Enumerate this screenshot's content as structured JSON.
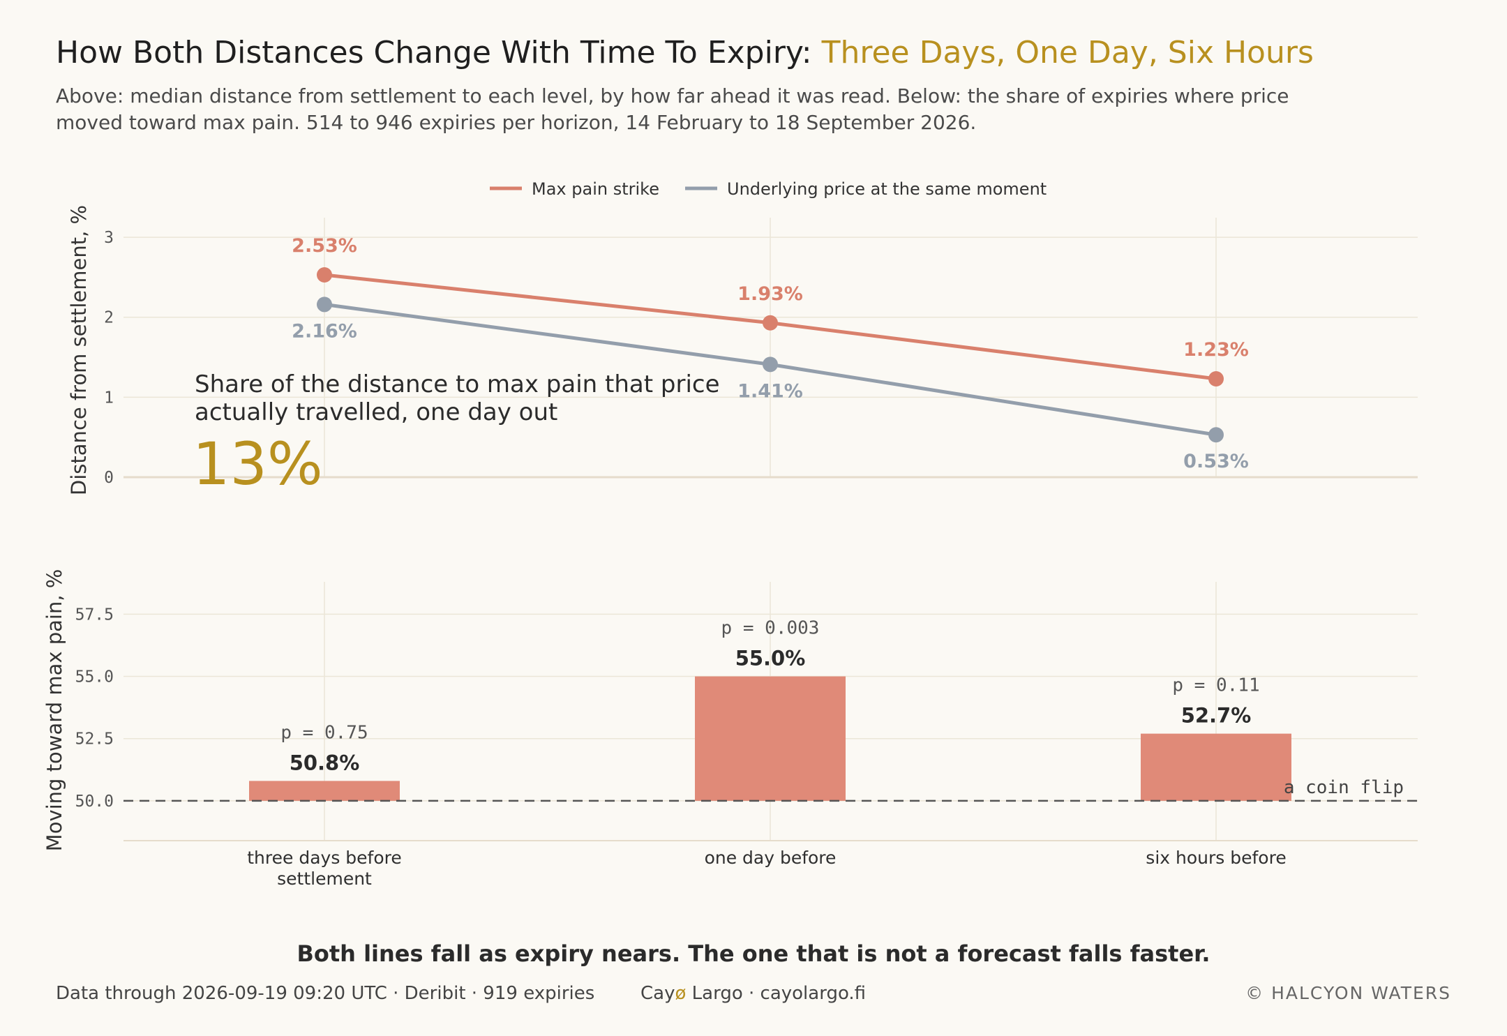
{
  "header": {
    "title_prefix": "How Both Distances Change With Time To Expiry: ",
    "title_accent": "Three Days, One Day, Six Hours",
    "subtitle_line1": "Above: median distance from settlement to each level, by how far ahead it was read. Below: the share of expiries where price",
    "subtitle_line2": "moved toward max pain. 514 to 946 expiries per horizon, 14 February to 18 September 2026."
  },
  "legend": {
    "items": [
      {
        "label": "Max pain strike",
        "color": "#d9806c"
      },
      {
        "label": "Underlying price at the same moment",
        "color": "#939eab"
      }
    ]
  },
  "annotation": {
    "line1": "Share of the distance to max pain that price",
    "line2": "actually travelled, one day out",
    "value": "13%"
  },
  "chart_data": [
    {
      "type": "line",
      "ylabel": "Distance from settlement, %",
      "ylim": [
        0,
        3.35
      ],
      "yticks": [
        0,
        1,
        2,
        3
      ],
      "grid": true,
      "legend_position": "top-center",
      "categories": [
        "three days before settlement",
        "one day before",
        "six hours before"
      ],
      "series": [
        {
          "name": "Max pain strike",
          "color": "#d9806c",
          "values": [
            2.53,
            1.93,
            1.23
          ],
          "labels": [
            "2.53%",
            "1.93%",
            "1.23%"
          ]
        },
        {
          "name": "Underlying price at the same moment",
          "color": "#939eab",
          "values": [
            2.16,
            1.41,
            0.53
          ],
          "labels": [
            "2.16%",
            "1.41%",
            "0.53%"
          ]
        }
      ]
    },
    {
      "type": "bar",
      "ylabel": "Moving toward max pain, %",
      "ylim": [
        48.4,
        58.8
      ],
      "yticks": [
        50.0,
        52.5,
        55.0,
        57.5
      ],
      "ytick_labels": [
        "50.0",
        "52.5",
        "55.0",
        "57.5"
      ],
      "baseline": 50.0,
      "baseline_label": "a coin flip",
      "color": "#e08a78",
      "categories": [
        "three days before settlement",
        "one day before",
        "six hours before"
      ],
      "category_labels": [
        [
          "three days before",
          "settlement"
        ],
        [
          "one day before"
        ],
        [
          "six hours before"
        ]
      ],
      "values": [
        50.8,
        55.0,
        52.7
      ],
      "value_labels": [
        "50.8%",
        "55.0%",
        "52.7%"
      ],
      "p_values": [
        "p = 0.75",
        "p = 0.003",
        "p = 0.11"
      ]
    }
  ],
  "footer": {
    "takeaway": "Both lines fall as expiry nears. The one that is not a forecast falls faster.",
    "data_note": "Data through 2026-09-19 09:20 UTC  ·  Deribit  ·  919 expiries",
    "site_name_a": "Cay",
    "site_name_o": "ø",
    "site_name_b": " Largo",
    "site_url": "  ·  cayolargo.fi",
    "copyright": "© HALCYON WATERS"
  }
}
